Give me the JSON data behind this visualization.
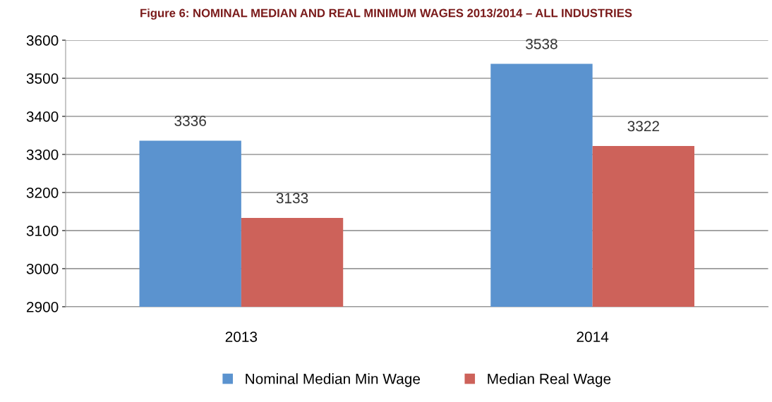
{
  "chart_data": {
    "type": "bar",
    "title": "Figure 6: NOMINAL MEDIAN AND REAL MINIMUM WAGES 2013/2014 – ALL INDUSTRIES",
    "categories": [
      "2013",
      "2014"
    ],
    "series": [
      {
        "name": "Nominal Median Min Wage",
        "color": "#5b93cf",
        "values": [
          3336,
          3538
        ]
      },
      {
        "name": "Median Real Wage",
        "color": "#cd625a",
        "values": [
          3133,
          3322
        ]
      }
    ],
    "ylim": [
      2900,
      3600
    ],
    "yticks": [
      2900,
      3000,
      3100,
      3200,
      3300,
      3400,
      3500,
      3600
    ],
    "grid": "y",
    "legend": "bottom",
    "data_labels": true
  }
}
